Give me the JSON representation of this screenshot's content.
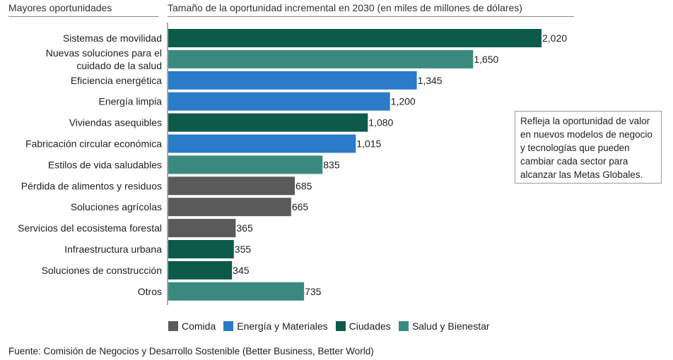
{
  "header": {
    "left": "Mayores oportunidades",
    "right": "Tamaño de la oportunidad incremental en 2030 (en miles de millones de dólares)"
  },
  "colors": {
    "Comida": "#5a5a5a",
    "Energía y Materiales": "#2a7bc8",
    "Ciudades": "#0d5a4b",
    "Salud y Bienestar": "#3b8a80"
  },
  "chart_data": {
    "type": "bar",
    "orientation": "horizontal",
    "categories": [
      [
        "Sistemas de movilidad"
      ],
      [
        "Nuevas soluciones para el",
        "cuidado de la salud"
      ],
      [
        "Eficiencia energética"
      ],
      [
        "Energía limpia"
      ],
      [
        "Viviendas asequibles"
      ],
      [
        "Fabricación circular económica"
      ],
      [
        "Estilos de vida saludables"
      ],
      [
        "Pérdida de alimentos y residuos"
      ],
      [
        "Soluciones agrícolas"
      ],
      [
        "Servicios del ecosistema forestal"
      ],
      [
        "Infraestructura urbana"
      ],
      [
        "Soluciones de construcción"
      ],
      [
        "Otros"
      ]
    ],
    "values": [
      2020,
      1650,
      1345,
      1200,
      1080,
      1015,
      835,
      685,
      665,
      365,
      355,
      345,
      735
    ],
    "value_labels": [
      "2,020",
      "1,650",
      "1,345",
      "1,200",
      "1,080",
      "1,015",
      "835",
      "685",
      "665",
      "365",
      "355",
      "345",
      "735"
    ],
    "groups": [
      "Ciudades",
      "Salud y Bienestar",
      "Energía y Materiales",
      "Energía y Materiales",
      "Ciudades",
      "Energía y Materiales",
      "Salud y Bienestar",
      "Comida",
      "Comida",
      "Comida",
      "Ciudades",
      "Ciudades",
      "Salud y Bienestar"
    ],
    "legend": [
      "Comida",
      "Energía y Materiales",
      "Ciudades",
      "Salud y Bienestar"
    ],
    "legend_position": "bottom",
    "grid": false,
    "xlim": [
      0,
      2050
    ]
  },
  "note": "Refleja la oportunidad de valor en nuevos modelos de negocio y tecnologías que pueden cambiar cada sector para alcanzar las Metas Globales.",
  "source": "Fuente: Comisión de Negocios y Desarrollo Sostenible (Better Business, Better World)"
}
